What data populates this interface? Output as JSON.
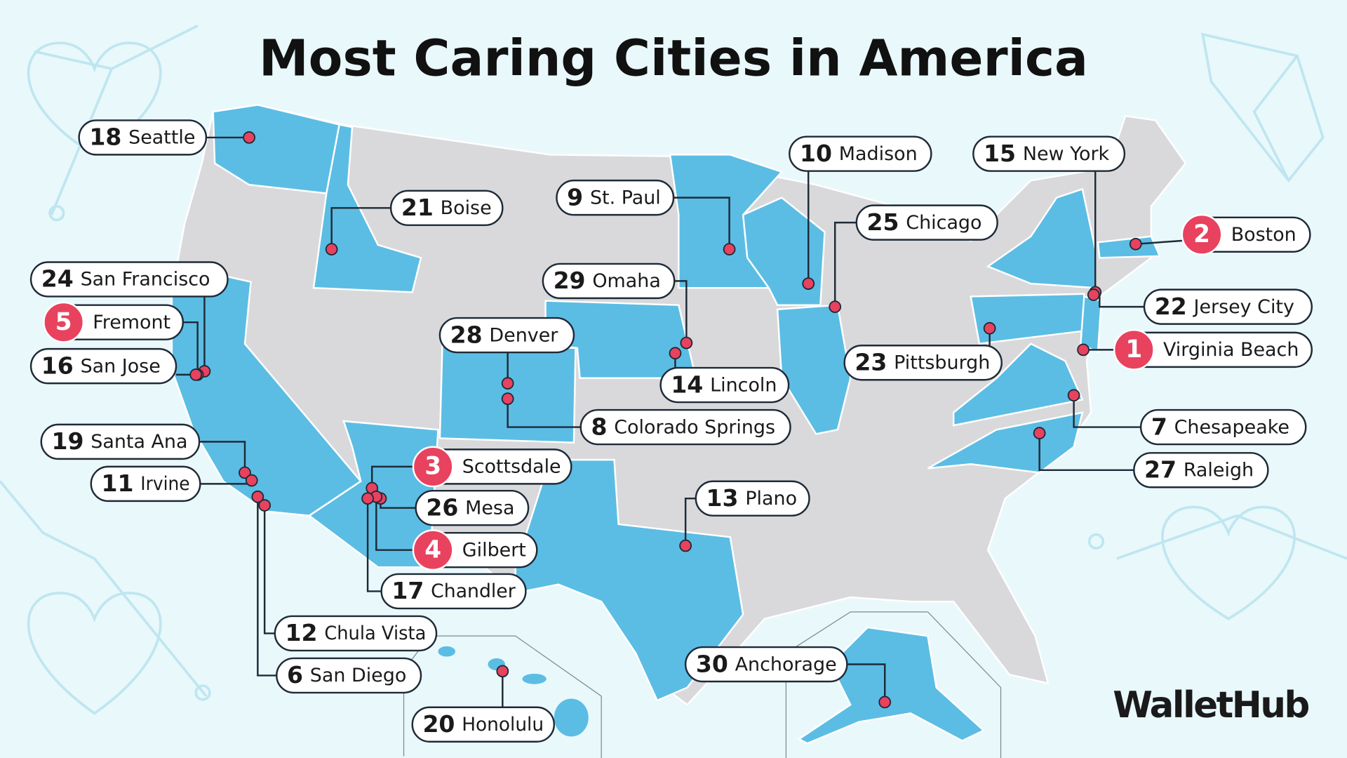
{
  "title": "Most Caring Cities in America",
  "cities": [
    {
      "rank": 18,
      "name": "Seattle"
    },
    {
      "rank": 21,
      "name": "Boise"
    },
    {
      "rank": 24,
      "name": "San Francisco"
    },
    {
      "rank": 5,
      "name": "Fremont"
    },
    {
      "rank": 16,
      "name": "San Jose"
    },
    {
      "rank": 19,
      "name": "Santa Ana"
    },
    {
      "rank": 11,
      "name": "Irvine"
    },
    {
      "rank": 12,
      "name": "Chula Vista"
    },
    {
      "rank": 6,
      "name": "San Diego"
    },
    {
      "rank": 3,
      "name": "Scottsdale"
    },
    {
      "rank": 26,
      "name": "Mesa"
    },
    {
      "rank": 4,
      "name": "Gilbert"
    },
    {
      "rank": 17,
      "name": "Chandler"
    },
    {
      "rank": 20,
      "name": "Honolulu"
    },
    {
      "rank": 28,
      "name": "Denver"
    },
    {
      "rank": 8,
      "name": "Colorado Springs"
    },
    {
      "rank": 9,
      "name": "St. Paul"
    },
    {
      "rank": 29,
      "name": "Omaha"
    },
    {
      "rank": 14,
      "name": "Lincoln"
    },
    {
      "rank": 10,
      "name": "Madison"
    },
    {
      "rank": 25,
      "name": "Chicago"
    },
    {
      "rank": 23,
      "name": "Pittsburgh"
    },
    {
      "rank": 13,
      "name": "Plano"
    },
    {
      "rank": 30,
      "name": "Anchorage"
    },
    {
      "rank": 15,
      "name": "New York"
    },
    {
      "rank": 2,
      "name": "Boston"
    },
    {
      "rank": 22,
      "name": "Jersey City"
    },
    {
      "rank": 1,
      "name": "Virginia Beach"
    },
    {
      "rank": 7,
      "name": "Chesapeake"
    },
    {
      "rank": 27,
      "name": "Raleigh"
    }
  ],
  "logo": "WalletHub"
}
